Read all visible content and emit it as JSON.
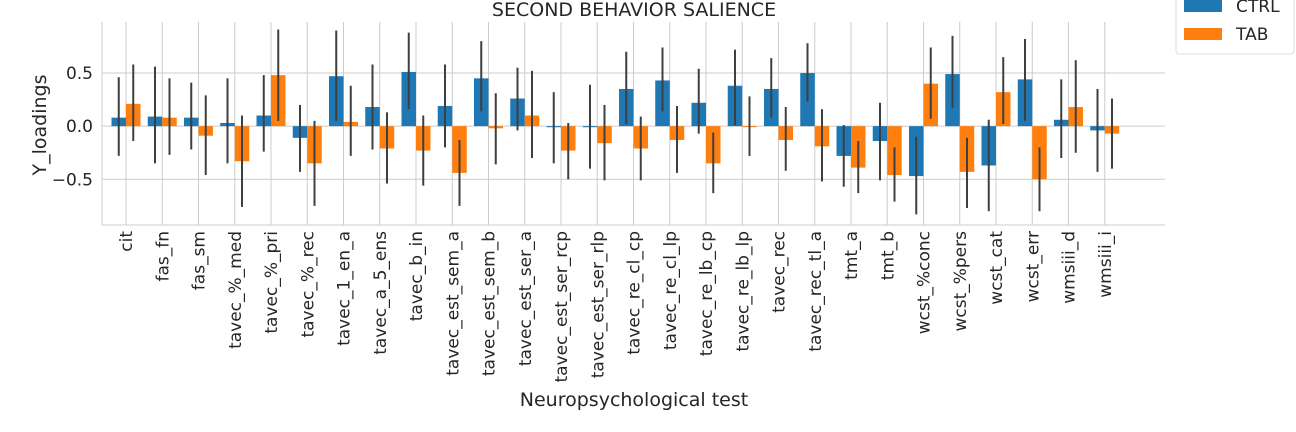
{
  "chart_data": {
    "type": "bar",
    "title": "SECOND BEHAVIOR SALIENCE",
    "xlabel": "Neuropsychological test",
    "ylabel": "Y_loadings",
    "ylim": [
      -0.93,
      0.98
    ],
    "yticks": [
      -0.5,
      0.0,
      0.5
    ],
    "ytick_labels": [
      "−0.5",
      "0.0",
      "0.5"
    ],
    "grid": true,
    "legend_position": "top-right",
    "categories": [
      "cit",
      "fas_fn",
      "fas_sm",
      "tavec_%_med",
      "tavec_%_pri",
      "tavec_%_rec",
      "tavec_1_en_a",
      "tavec_a_5_ens",
      "tavec_b_in",
      "tavec_est_sem_a",
      "tavec_est_sem_b",
      "tavec_est_ser_a",
      "tavec_est_ser_rcp",
      "tavec_est_ser_rlp",
      "tavec_re_cl_cp",
      "tavec_re_cl_lp",
      "tavec_re_lb_cp",
      "tavec_re_lb_lp",
      "tavec_rec",
      "tavec_rec_tl_a",
      "tmt_a",
      "tmt_b",
      "wcst_%conc",
      "wcst_%pers",
      "wcst_cat",
      "wcst_err",
      "wmsiii_d",
      "wmsiii_i"
    ],
    "series": [
      {
        "name": "CTRL",
        "color": "#1f77b4",
        "values": [
          0.08,
          0.09,
          0.08,
          0.03,
          0.1,
          -0.11,
          0.47,
          0.18,
          0.51,
          0.19,
          0.45,
          0.26,
          -0.01,
          -0.01,
          0.35,
          0.43,
          0.22,
          0.38,
          0.35,
          0.5,
          -0.28,
          -0.14,
          -0.47,
          0.49,
          -0.37,
          0.44,
          0.06,
          -0.04
        ],
        "err_low": [
          -0.28,
          -0.35,
          -0.22,
          -0.35,
          -0.24,
          -0.43,
          0.05,
          -0.22,
          0.16,
          -0.2,
          0.14,
          -0.04,
          -0.35,
          -0.4,
          0.02,
          0.14,
          -0.07,
          0.01,
          0.08,
          0.23,
          -0.57,
          -0.51,
          -0.83,
          0.17,
          -0.8,
          0.05,
          -0.3,
          -0.43
        ],
        "err_high": [
          0.46,
          0.56,
          0.41,
          0.45,
          0.48,
          0.2,
          0.9,
          0.58,
          0.88,
          0.58,
          0.8,
          0.55,
          0.32,
          0.39,
          0.7,
          0.74,
          0.54,
          0.72,
          0.64,
          0.78,
          0.01,
          0.22,
          -0.1,
          0.85,
          0.06,
          0.82,
          0.44,
          0.35
        ]
      },
      {
        "name": "TAB",
        "color": "#ff7f0e",
        "values": [
          0.21,
          0.08,
          -0.09,
          -0.33,
          0.48,
          -0.35,
          0.04,
          -0.21,
          -0.23,
          -0.44,
          -0.02,
          0.1,
          -0.23,
          -0.16,
          -0.21,
          -0.13,
          -0.35,
          0.0,
          -0.13,
          -0.19,
          -0.39,
          -0.46,
          0.4,
          -0.43,
          0.32,
          -0.5,
          0.18,
          -0.07
        ],
        "err_low": [
          -0.14,
          -0.27,
          -0.46,
          -0.76,
          0.05,
          -0.75,
          -0.28,
          -0.54,
          -0.56,
          -0.75,
          -0.36,
          -0.3,
          -0.5,
          -0.51,
          -0.51,
          -0.44,
          -0.63,
          -0.28,
          -0.42,
          -0.52,
          -0.63,
          -0.71,
          0.07,
          -0.77,
          0.02,
          -0.8,
          -0.25,
          -0.4
        ],
        "err_high": [
          0.58,
          0.45,
          0.29,
          0.1,
          0.91,
          0.05,
          0.38,
          0.13,
          0.1,
          -0.13,
          0.31,
          0.52,
          0.03,
          0.2,
          0.09,
          0.19,
          -0.06,
          0.28,
          0.18,
          0.16,
          -0.14,
          -0.2,
          0.74,
          -0.11,
          0.65,
          -0.2,
          0.62,
          0.26
        ]
      }
    ]
  }
}
